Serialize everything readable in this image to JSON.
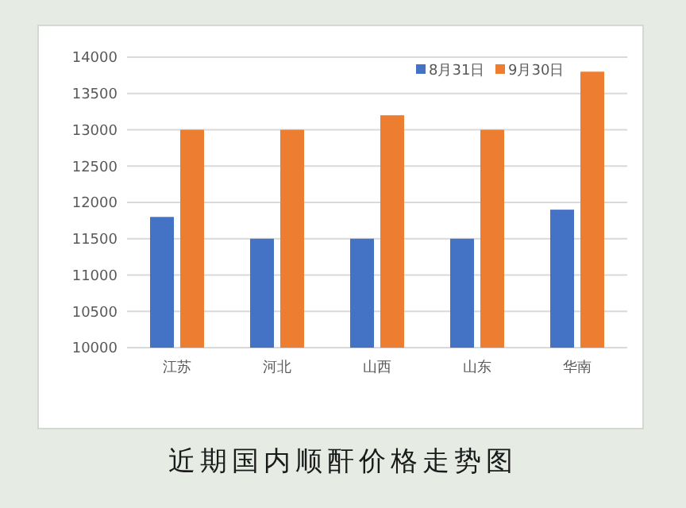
{
  "chart_data": {
    "type": "bar",
    "title": "近期国内顺酐价格走势图",
    "categories": [
      "江苏",
      "河北",
      "山西",
      "山东",
      "华南"
    ],
    "series": [
      {
        "name": "8月31日",
        "color": "#4472c4",
        "values": [
          11800,
          11500,
          11500,
          11500,
          11900
        ]
      },
      {
        "name": "9月30日",
        "color": "#ed7d31",
        "values": [
          13000,
          13000,
          13200,
          13000,
          13800
        ]
      }
    ],
    "ylim": [
      10000,
      14000
    ],
    "yticks": [
      10000,
      10500,
      11000,
      11500,
      12000,
      12500,
      13000,
      13500,
      14000
    ],
    "grid": "y",
    "legend": "top right"
  }
}
